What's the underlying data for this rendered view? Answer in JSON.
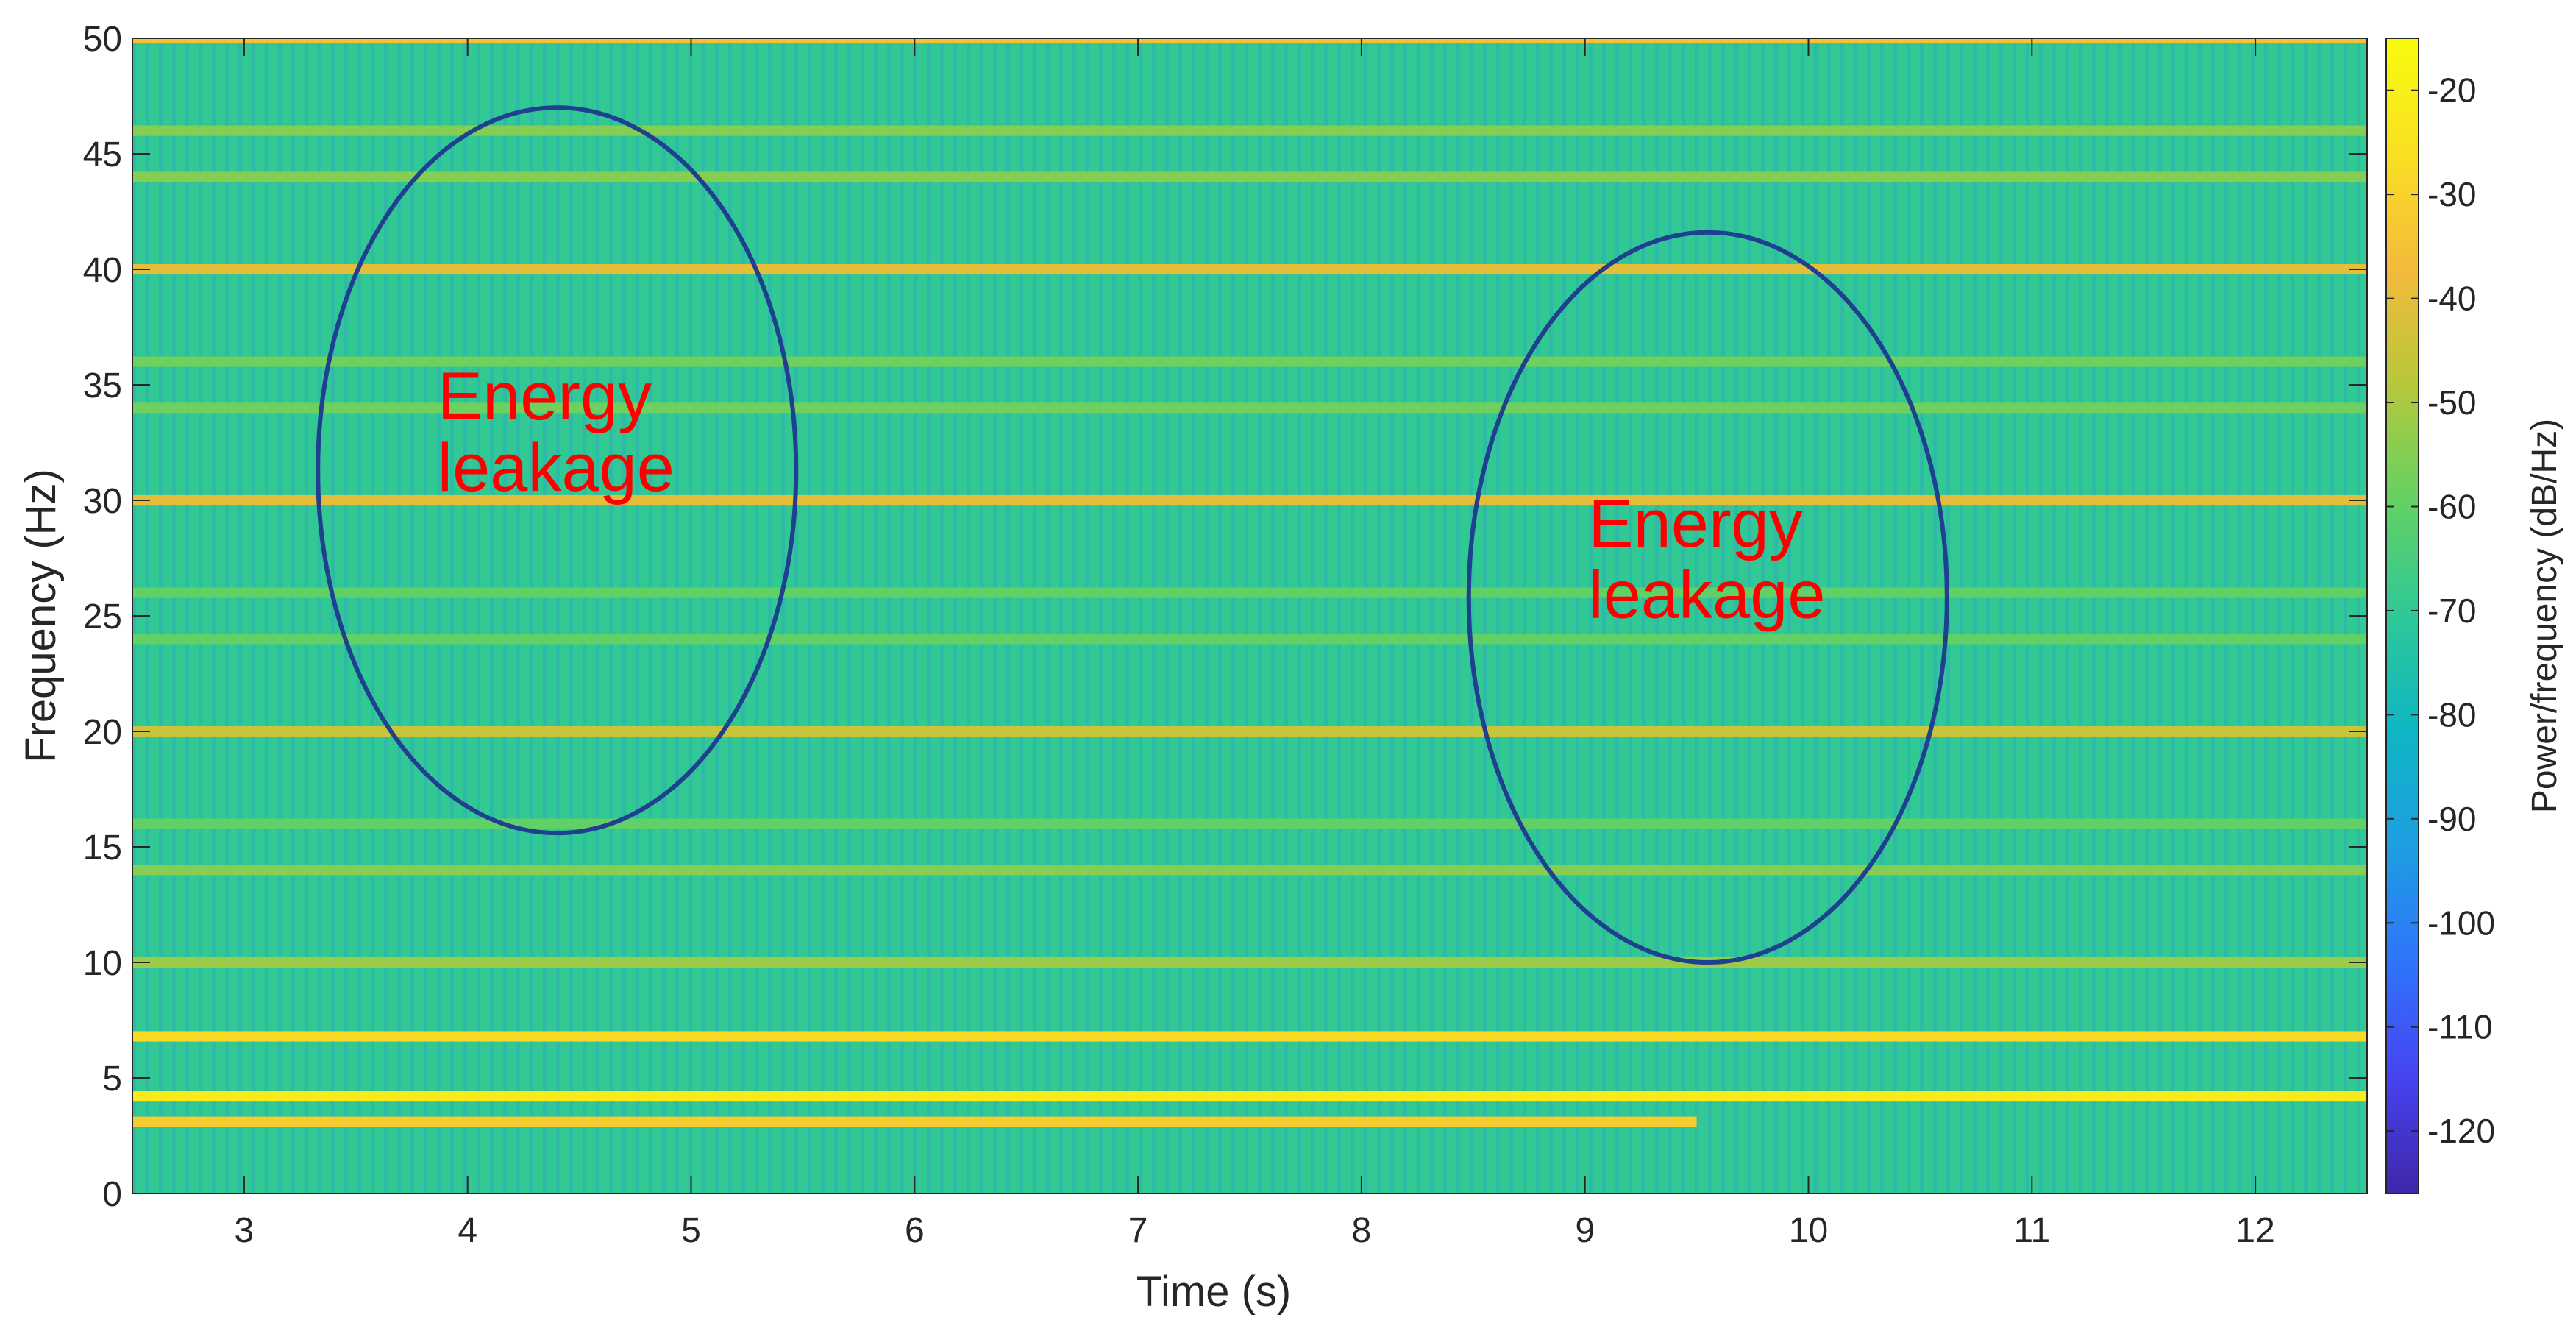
{
  "chart_data": {
    "type": "heatmap",
    "title": "",
    "xlabel": "Time (s)",
    "ylabel": "Frequency (Hz)",
    "xlim": [
      2.5,
      12.5
    ],
    "ylim": [
      0,
      50
    ],
    "xticks": [
      3,
      4,
      5,
      6,
      7,
      8,
      9,
      10,
      11,
      12
    ],
    "yticks": [
      0,
      5,
      10,
      15,
      20,
      25,
      30,
      35,
      40,
      45,
      50
    ],
    "grid": false,
    "colorbar": {
      "label": "Power/frequency (dB/Hz)",
      "range": [
        -126,
        -15
      ],
      "ticks": [
        -20,
        -30,
        -40,
        -50,
        -60,
        -70,
        -80,
        -90,
        -100,
        -110,
        -120
      ],
      "colormap": "parula",
      "colors": [
        "#3e26a8",
        "#4743f0",
        "#2f74fb",
        "#1e9ee2",
        "#0fb6c4",
        "#2ec897",
        "#64d164",
        "#b6c83a",
        "#f4ba3c",
        "#f9e022",
        "#f9fb0e"
      ]
    },
    "background_level_db": -70,
    "harmonic_lines": [
      {
        "frequency": 50,
        "level_db": -35
      },
      {
        "frequency": 46,
        "level_db": -55
      },
      {
        "frequency": 44,
        "level_db": -55
      },
      {
        "frequency": 40,
        "level_db": -40
      },
      {
        "frequency": 36,
        "level_db": -58
      },
      {
        "frequency": 34,
        "level_db": -58
      },
      {
        "frequency": 30,
        "level_db": -40
      },
      {
        "frequency": 26,
        "level_db": -60
      },
      {
        "frequency": 24,
        "level_db": -60
      },
      {
        "frequency": 20,
        "level_db": -45
      },
      {
        "frequency": 16,
        "level_db": -60
      },
      {
        "frequency": 14,
        "level_db": -55
      },
      {
        "frequency": 10,
        "level_db": -52
      },
      {
        "frequency": 6.8,
        "level_db": -28
      },
      {
        "frequency": 4.2,
        "level_db": -22
      },
      {
        "frequency": 3.1,
        "level_db": -32,
        "t_end": 9.5
      }
    ],
    "annotations": [
      {
        "text": "Energy leakage",
        "lines": [
          "Energy",
          "leakage"
        ],
        "x": 4.4,
        "y": 31.3,
        "rx": 1.07,
        "ry": 15.7,
        "color": "#ff0000",
        "outline": "#1f3f8f"
      },
      {
        "text": "Energy leakage",
        "lines": [
          "Energy",
          "leakage"
        ],
        "x": 9.55,
        "y": 25.8,
        "rx": 1.07,
        "ry": 15.8,
        "color": "#ff0000",
        "outline": "#1f3f8f"
      }
    ]
  }
}
